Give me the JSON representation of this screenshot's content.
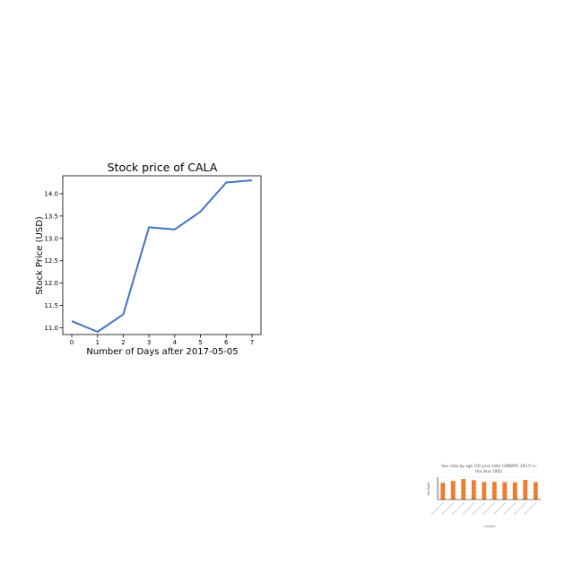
{
  "chart_data": [
    {
      "type": "line",
      "title": "Stock price of CALA",
      "xlabel": "Number of Days after 2017-05-05",
      "ylabel": "Stock Price (USD)",
      "x": [
        0,
        1,
        2,
        3,
        4,
        5,
        6,
        7
      ],
      "series": [
        {
          "values": [
            11.15,
            10.91,
            11.3,
            13.25,
            13.2,
            13.6,
            14.25,
            14.3
          ],
          "color": "#4472c4"
        }
      ],
      "xticks": [
        "0",
        "1",
        "2",
        "3",
        "4",
        "5",
        "6",
        "7"
      ],
      "yticks": [
        "11.0",
        "11.5",
        "12.0",
        "12.5",
        "13.0",
        "13.5",
        "14.0"
      ],
      "xlim": [
        -0.35,
        7.35
      ],
      "ylim": [
        10.85,
        14.4
      ],
      "grid": false
    },
    {
      "type": "bar",
      "title": "Sex ratio by age (50 year olds) (UNWPP, 2017) in the Year 1950",
      "title_lines": [
        "Sex ratio by age (50 year olds) (UNWPP, 2017) in",
        "the Year 1950"
      ],
      "xlabel": "Country",
      "ylabel": "Sex Ratio",
      "categories": [
        "",
        "",
        "",
        "",
        "",
        "",
        "",
        "",
        "",
        ""
      ],
      "values": [
        90,
        100,
        110,
        104,
        94,
        95,
        93,
        92,
        105,
        93
      ],
      "color": "#ed7d31",
      "ylim": [
        0,
        120
      ],
      "grid": true
    }
  ]
}
